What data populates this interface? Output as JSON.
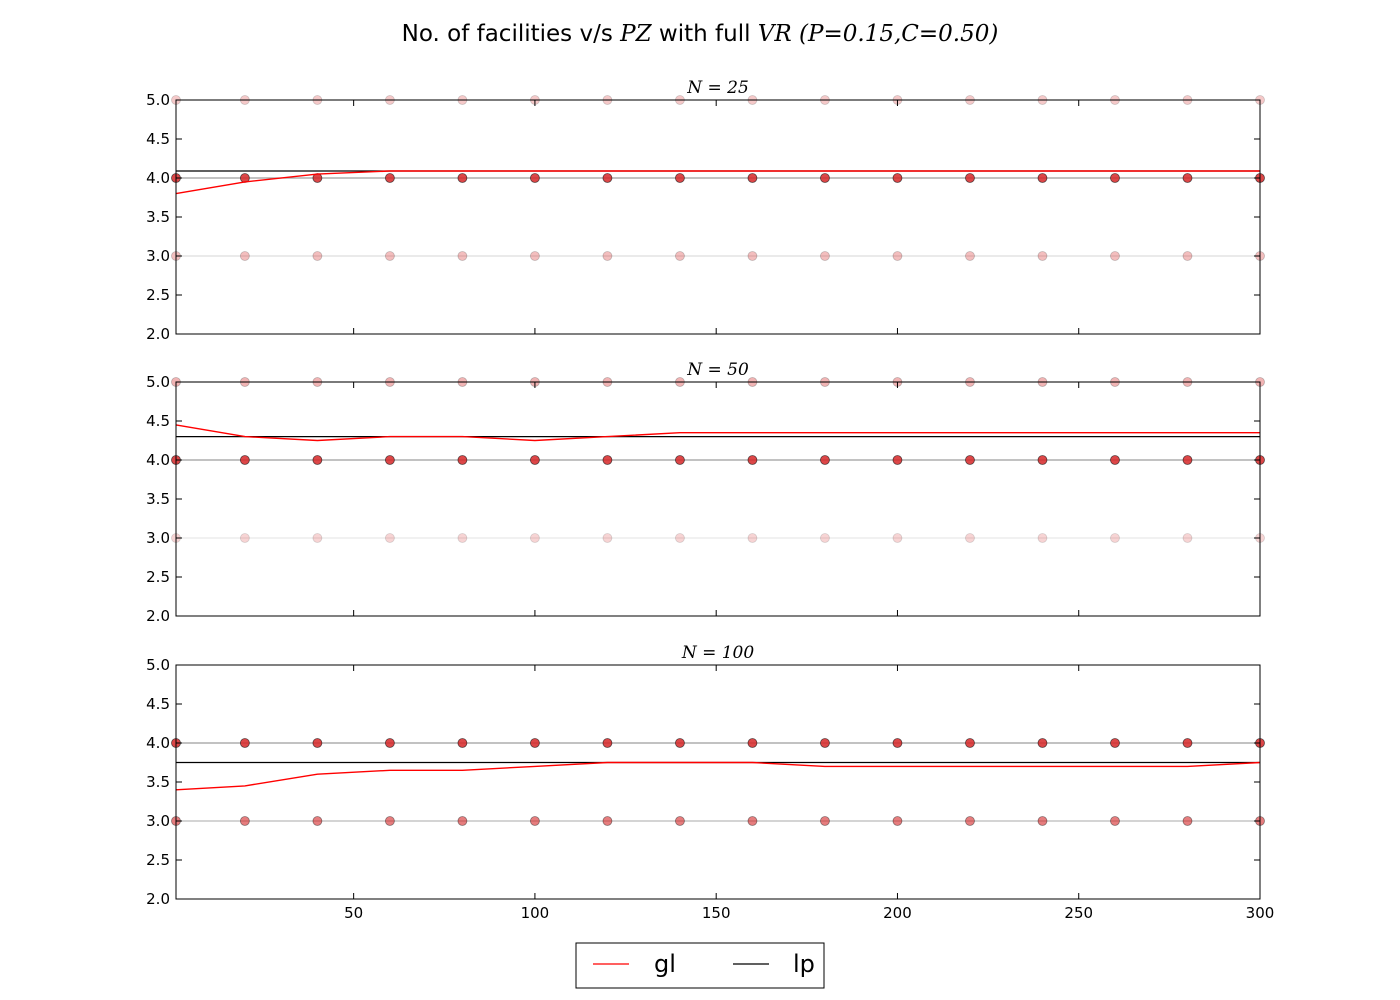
{
  "chart_data": {
    "type": "line",
    "title": {
      "prefix": "No. of facilities v/s ",
      "pz": "PZ",
      "middle": " with full ",
      "vr": "VR",
      "params": " (P=0.15,C=0.50)"
    },
    "legend": {
      "placement": "bottom-center",
      "entries": [
        {
          "label": "gl",
          "color": "#ff0000"
        },
        {
          "label": "lp",
          "color": "#000000"
        }
      ]
    },
    "colors": {
      "gl": "#ff0000",
      "lp": "#000000",
      "point": "#d62728"
    },
    "xlim": [
      1,
      300
    ],
    "ylim": [
      2.0,
      5.0
    ],
    "xticks": [
      "50",
      "100",
      "150",
      "200",
      "250",
      "300"
    ],
    "xtick_values": [
      50,
      100,
      150,
      200,
      250,
      300
    ],
    "yticks": [
      "2.0",
      "2.5",
      "3.0",
      "3.5",
      "4.0",
      "4.5",
      "5.0"
    ],
    "ytick_values": [
      2.0,
      2.5,
      3.0,
      3.5,
      4.0,
      4.5,
      5.0
    ],
    "x": [
      1,
      20,
      40,
      60,
      80,
      100,
      120,
      140,
      160,
      180,
      200,
      220,
      240,
      260,
      280,
      300
    ],
    "grid": false,
    "panels": [
      {
        "label": "N = 25",
        "lp": 4.09,
        "gl": [
          3.8,
          3.95,
          4.05,
          4.09,
          4.09,
          4.09,
          4.09,
          4.09,
          4.09,
          4.09,
          4.09,
          4.09,
          4.09,
          4.09,
          4.09,
          4.09
        ],
        "point_levels": [
          {
            "y": 5,
            "opacity": 0.25
          },
          {
            "y": 4,
            "opacity": 0.85
          },
          {
            "y": 3,
            "opacity": 0.3
          }
        ]
      },
      {
        "label": "N = 50",
        "lp": 4.3,
        "gl": [
          4.45,
          4.3,
          4.25,
          4.3,
          4.3,
          4.25,
          4.3,
          4.35,
          4.35,
          4.35,
          4.35,
          4.35,
          4.35,
          4.35,
          4.35,
          4.35
        ],
        "point_levels": [
          {
            "y": 5,
            "opacity": 0.35
          },
          {
            "y": 4,
            "opacity": 0.85
          },
          {
            "y": 3,
            "opacity": 0.2
          }
        ]
      },
      {
        "label": "N = 100",
        "lp": 3.75,
        "gl": [
          3.4,
          3.45,
          3.6,
          3.65,
          3.65,
          3.7,
          3.75,
          3.75,
          3.75,
          3.7,
          3.7,
          3.7,
          3.7,
          3.7,
          3.7,
          3.75
        ],
        "point_levels": [
          {
            "y": 4,
            "opacity": 0.85
          },
          {
            "y": 3,
            "opacity": 0.6
          }
        ]
      }
    ]
  }
}
